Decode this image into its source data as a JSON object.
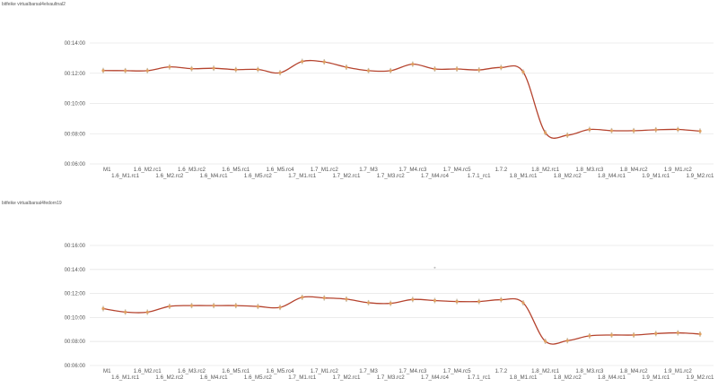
{
  "chart_data": [
    {
      "type": "line",
      "title": "bitfeike virtualbarsal4elvaultnal2",
      "yticks": [
        "00:06:00",
        "00:08:00",
        "00:10:00",
        "00:12:00",
        "00:14:00"
      ],
      "ylim_minutes": [
        6,
        14
      ],
      "categories": [
        "M1",
        "1.6_M1.rc1",
        "1.6_M2.rc1",
        "1.6_M2.rc2",
        "1.6_M3.rc2",
        "1.6_M4.rc1",
        "1.6_M5.rc1",
        "1.6_M5.rc2",
        "1.6_M5.rc4",
        "1.7_M1.rc1",
        "1.7_M1.rc2",
        "1.7_M2.rc1",
        "1.7_M3",
        "1.7_M3.rc2",
        "1.7_M4.rc3",
        "1.7_M4.rc4",
        "1.7_M4.rc5",
        "1.7.1_rc1",
        "1.7.2",
        "1.8_M1.rc1",
        "1.8_M2.rc1",
        "1.8_M2.rc2",
        "1.8_M3.rc3",
        "1.8_M4.rc1",
        "1.8_M4.rc2",
        "1.9_M1.rc1",
        "1.9_M1.rc2",
        "1.9_M2.rc1"
      ],
      "values_minutes": [
        12.18,
        12.17,
        12.17,
        12.42,
        12.3,
        12.33,
        12.24,
        12.25,
        12.03,
        12.78,
        12.75,
        12.4,
        12.17,
        12.17,
        12.6,
        12.28,
        12.28,
        12.22,
        12.38,
        12.08,
        8.07,
        7.9,
        8.28,
        8.2,
        8.2,
        8.26,
        8.28,
        8.17
      ],
      "line_color": "#b5432e",
      "marker_color": "#e0a060"
    },
    {
      "type": "line",
      "title": "bitfeike virtualbarsal4fedorn19",
      "yticks": [
        "00:06:00",
        "00:08:00",
        "00:10:00",
        "00:12:00",
        "00:14:00",
        "00:16:00"
      ],
      "ylim_minutes": [
        6,
        16
      ],
      "categories": [
        "M1",
        "1.6_M1.rc1",
        "1.6_M2.rc1",
        "1.6_M2.rc2",
        "1.6_M3.rc2",
        "1.6_M4.rc1",
        "1.6_M5.rc1",
        "1.6_M5.rc2",
        "1.6_M5.rc4",
        "1.7_M1.rc1",
        "1.7_M1.rc2",
        "1.7_M2.rc1",
        "1.7_M3",
        "1.7_M3.rc2",
        "1.7_M4.rc3",
        "1.7_M4.rc4",
        "1.7_M4.rc5",
        "1.7.1_rc1",
        "1.7.2",
        "1.8_M1.rc1",
        "1.8_M2.rc1",
        "1.8_M2.rc2",
        "1.8_M3.rc3",
        "1.8_M4.rc1",
        "1.8_M4.rc2",
        "1.9_M1.rc1",
        "1.9_M1.rc2",
        "1.9_M2.rc1"
      ],
      "values_minutes": [
        10.74,
        10.45,
        10.44,
        10.93,
        10.99,
        10.99,
        10.99,
        10.92,
        10.84,
        11.68,
        11.63,
        11.53,
        11.23,
        11.18,
        11.5,
        11.41,
        11.33,
        11.33,
        11.48,
        11.22,
        8.02,
        8.07,
        8.47,
        8.54,
        8.54,
        8.66,
        8.72,
        8.62
      ],
      "outliers": [
        {
          "category": "1.7_M4.rc4",
          "value_minutes": 14.15
        }
      ],
      "line_color": "#b5432e",
      "marker_color": "#e0a060"
    }
  ]
}
